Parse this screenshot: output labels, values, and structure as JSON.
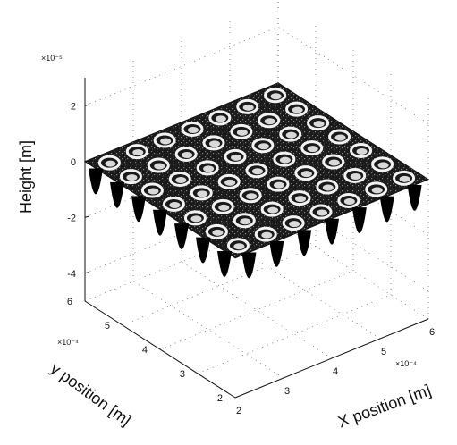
{
  "chart_data": {
    "type": "surface",
    "description_of_pattern": "",
    "xlabel": "X position [m]",
    "ylabel": "y position [m]",
    "zlabel": "Height [m]",
    "x_ticks": [
      "2",
      "3",
      "4",
      "5",
      "6"
    ],
    "y_ticks": [
      "2",
      "3",
      "4",
      "5",
      "6"
    ],
    "z_ticks": [
      "-4",
      "-2",
      "0",
      "2"
    ],
    "x_multiplier": "×10⁻⁴",
    "y_multiplier": "×10⁻⁴",
    "z_multiplier": "×10⁻⁵",
    "xlim": [
      2,
      6
    ],
    "ylim": [
      2,
      6
    ],
    "zlim": [
      -5,
      3
    ],
    "grid": true,
    "surface": {
      "base_height": 0,
      "dimples_per_side": 7,
      "dimple_depth": -4
    }
  }
}
